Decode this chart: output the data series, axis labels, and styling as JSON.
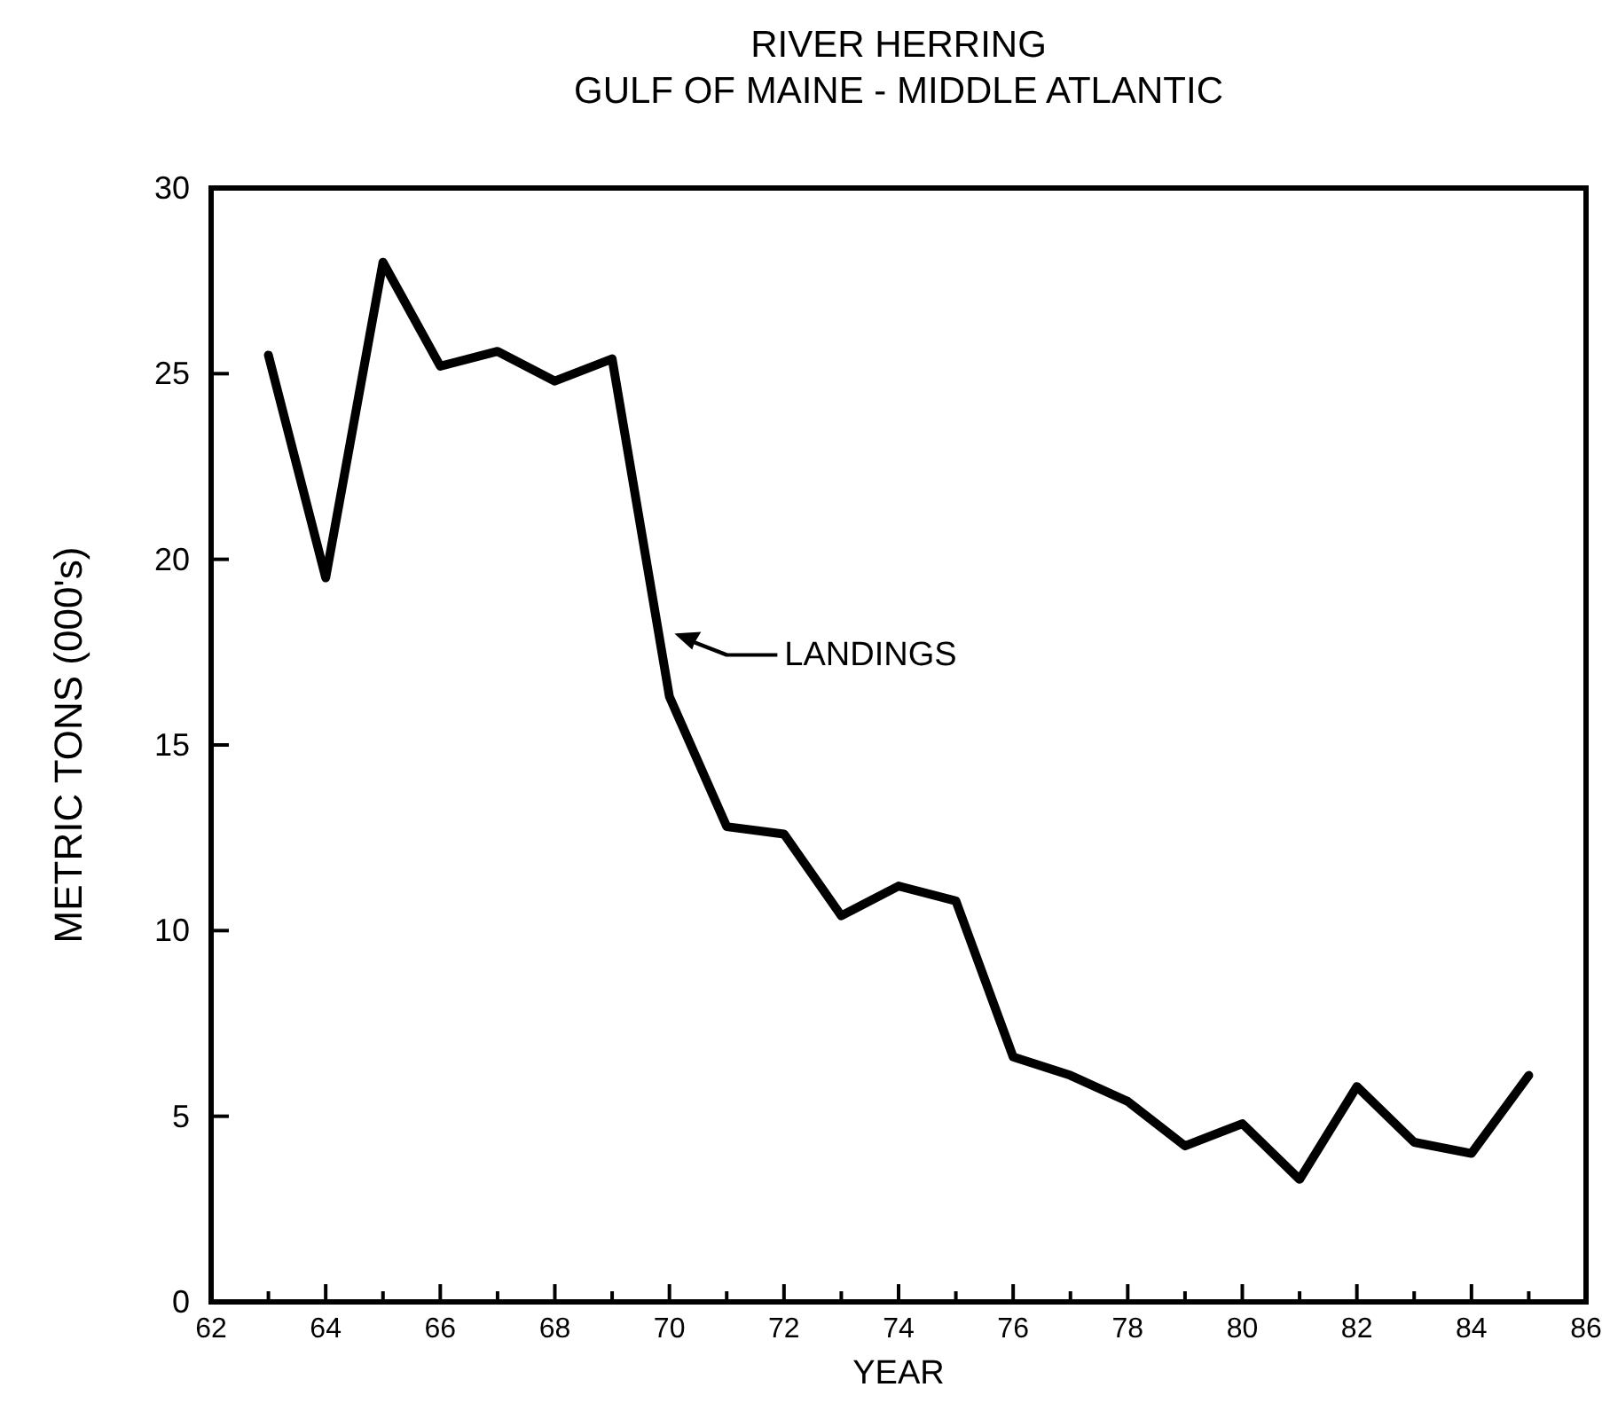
{
  "chart_data": {
    "type": "line",
    "title": "RIVER HERRING",
    "subtitle": "GULF OF MAINE - MIDDLE ATLANTIC",
    "xlabel": "YEAR",
    "ylabel": "METRIC TONS (000's)",
    "x": [
      63,
      64,
      65,
      66,
      67,
      68,
      69,
      70,
      71,
      72,
      73,
      74,
      75,
      76,
      77,
      78,
      79,
      80,
      81,
      82,
      83,
      84,
      85
    ],
    "series": [
      {
        "color": "#000000",
        "values": [
          25.5,
          19.5,
          28,
          25.2,
          25.6,
          24.8,
          25.4,
          16.3,
          12.8,
          12.6,
          10.4,
          11.2,
          10.8,
          6.6,
          6.1,
          5.4,
          4.2,
          4.8,
          3.3,
          5.8,
          4.3,
          4.0,
          6.1
        ]
      }
    ],
    "annotations": [
      "LANDINGS"
    ],
    "xlim": [
      62,
      86
    ],
    "ylim": [
      0,
      30
    ],
    "xticks": [
      62,
      {
        "value": 63,
        "label": null
      },
      64,
      {
        "value": 65,
        "label": null
      },
      66,
      {
        "value": 67,
        "label": null
      },
      68,
      {
        "value": 69,
        "label": null
      },
      70,
      {
        "value": 71,
        "label": null
      },
      72,
      {
        "value": 73,
        "label": null
      },
      74,
      {
        "value": 75,
        "label": null
      },
      76,
      {
        "value": 77,
        "label": null
      },
      78,
      {
        "value": 79,
        "label": null
      },
      80,
      {
        "value": 81,
        "label": null
      },
      82,
      {
        "value": 83,
        "label": null
      },
      84,
      {
        "value": 85,
        "label": null
      },
      86
    ],
    "yticks": [
      0,
      5,
      10,
      15,
      20,
      25,
      30
    ],
    "grid": false,
    "marker": "none",
    "line_style": "solid"
  }
}
